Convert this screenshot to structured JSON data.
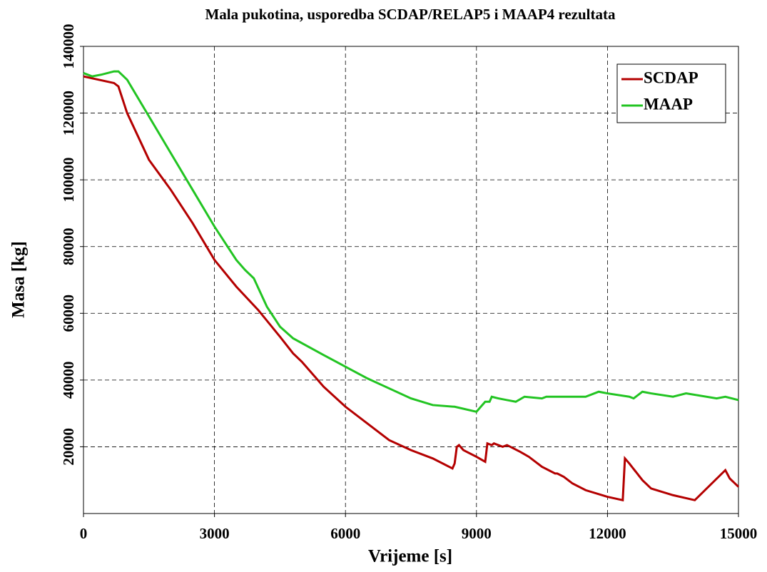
{
  "chart_data": {
    "type": "line",
    "title": "Mala pukotina, usporedba SCDAP/RELAP5 i MAAP4 rezultata",
    "x_label": "Vrijeme [s]",
    "y_label": "Masa [kg]",
    "xlim": [
      0,
      15000
    ],
    "xticks": [
      0,
      3000,
      6000,
      9000,
      12000,
      15000
    ],
    "ylim": [
      0,
      140000
    ],
    "yticks": [
      20000,
      40000,
      60000,
      80000,
      100000,
      120000,
      140000
    ],
    "grid": true,
    "legend": "upper right",
    "series": [
      {
        "name": "SCDAP",
        "color": "#b40000",
        "x": [
          0,
          700,
          800,
          1000,
          1500,
          2000,
          2500,
          3000,
          3500,
          4000,
          4500,
          4800,
          5000,
          5500,
          6000,
          6500,
          7000,
          7500,
          8000,
          8450,
          8500,
          8550,
          8600,
          8700,
          9000,
          9200,
          9250,
          9350,
          9400,
          9600,
          9700,
          10000,
          10200,
          10500,
          10800,
          10850,
          11000,
          11200,
          11500,
          12000,
          12350,
          12400,
          12500,
          12800,
          13000,
          13500,
          14000,
          14700,
          14800,
          15000
        ],
        "values": [
          131000,
          129000,
          128000,
          120000,
          106000,
          97000,
          87000,
          76000,
          68000,
          61000,
          53000,
          48000,
          45500,
          38000,
          32000,
          27000,
          22000,
          19000,
          16500,
          13500,
          15000,
          20000,
          20500,
          19000,
          17000,
          15500,
          21000,
          20500,
          21000,
          20000,
          20500,
          18500,
          17000,
          14000,
          12000,
          12000,
          11000,
          9000,
          7000,
          5000,
          4000,
          16500,
          15000,
          10000,
          7500,
          5500,
          4000,
          13000,
          10500,
          8000
        ]
      },
      {
        "name": "MAAP",
        "color": "#22c422",
        "x": [
          0,
          200,
          400,
          700,
          800,
          1000,
          1500,
          2000,
          2500,
          3000,
          3500,
          3700,
          3900,
          4200,
          4500,
          4800,
          5500,
          6000,
          6500,
          7000,
          7500,
          8000,
          8500,
          9000,
          9100,
          9200,
          9300,
          9350,
          9500,
          9700,
          9900,
          10100,
          10500,
          10600,
          11000,
          11500,
          11800,
          12000,
          12500,
          12600,
          12800,
          13000,
          13500,
          13800,
          14500,
          14700,
          15000
        ],
        "values": [
          132000,
          131000,
          131500,
          132500,
          132500,
          130000,
          119000,
          108000,
          97000,
          86000,
          76000,
          73000,
          70500,
          62000,
          56000,
          52500,
          47500,
          44000,
          40500,
          37500,
          34500,
          32500,
          32000,
          30500,
          32000,
          33500,
          33500,
          35000,
          34500,
          34000,
          33500,
          35000,
          34500,
          35000,
          35000,
          35000,
          36500,
          36000,
          35000,
          34500,
          36500,
          36000,
          35000,
          36000,
          34500,
          35000,
          34000
        ]
      }
    ]
  }
}
